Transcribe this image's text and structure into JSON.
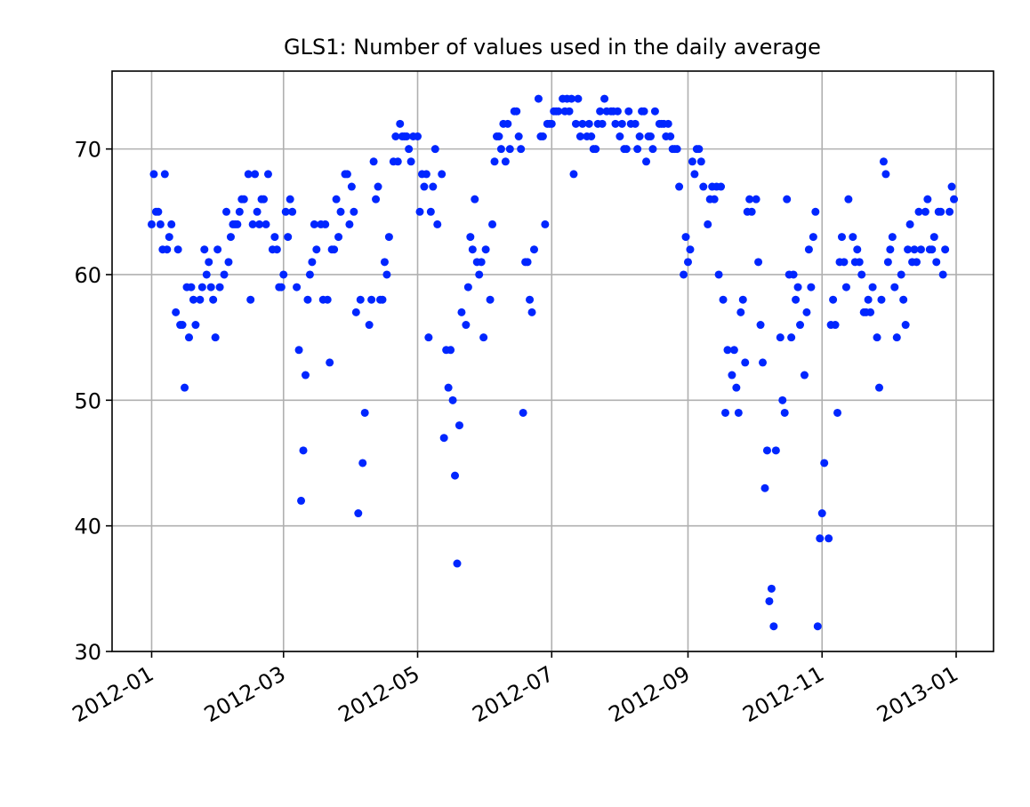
{
  "chart_data": {
    "type": "scatter",
    "title": "GLS1: Number of values used in the daily average",
    "color": "#0026ff",
    "grid": true,
    "xlim": [
      -18,
      383
    ],
    "xticks": [
      {
        "value": 0,
        "label": "2012-01"
      },
      {
        "value": 60,
        "label": "2012-03"
      },
      {
        "value": 121,
        "label": "2012-05"
      },
      {
        "value": 182,
        "label": "2012-07"
      },
      {
        "value": 244,
        "label": "2012-09"
      },
      {
        "value": 305,
        "label": "2012-11"
      },
      {
        "value": 366,
        "label": "2013-01"
      }
    ],
    "ylim": [
      30,
      76.2
    ],
    "yticks": [
      30,
      40,
      50,
      60,
      70
    ],
    "x": [
      0,
      1,
      2,
      3,
      4,
      5,
      6,
      7,
      8,
      9,
      11,
      12,
      13,
      14,
      15,
      16,
      17,
      18,
      19,
      20,
      22,
      23,
      24,
      25,
      26,
      27,
      28,
      29,
      30,
      31,
      33,
      34,
      35,
      36,
      37,
      38,
      39,
      40,
      41,
      42,
      44,
      45,
      46,
      47,
      48,
      49,
      50,
      51,
      52,
      53,
      55,
      56,
      57,
      58,
      59,
      60,
      61,
      62,
      63,
      64,
      66,
      67,
      68,
      69,
      70,
      71,
      72,
      73,
      74,
      75,
      77,
      78,
      79,
      80,
      81,
      82,
      83,
      84,
      85,
      86,
      88,
      89,
      90,
      91,
      92,
      93,
      94,
      95,
      96,
      97,
      99,
      100,
      101,
      102,
      103,
      104,
      105,
      106,
      107,
      108,
      110,
      111,
      112,
      113,
      114,
      115,
      116,
      117,
      118,
      119,
      121,
      122,
      123,
      124,
      125,
      126,
      127,
      128,
      129,
      130,
      132,
      133,
      134,
      135,
      136,
      137,
      138,
      139,
      140,
      141,
      143,
      144,
      145,
      146,
      147,
      148,
      149,
      150,
      151,
      152,
      154,
      155,
      156,
      157,
      158,
      159,
      160,
      161,
      162,
      163,
      165,
      166,
      167,
      168,
      169,
      170,
      171,
      172,
      173,
      174,
      176,
      177,
      178,
      179,
      180,
      181,
      182,
      183,
      184,
      185,
      187,
      188,
      189,
      190,
      191,
      192,
      193,
      194,
      195,
      196,
      198,
      199,
      200,
      201,
      202,
      203,
      204,
      205,
      206,
      207,
      209,
      210,
      211,
      212,
      213,
      214,
      215,
      216,
      217,
      218,
      220,
      221,
      222,
      223,
      224,
      225,
      226,
      227,
      228,
      229,
      231,
      232,
      233,
      234,
      235,
      236,
      237,
      238,
      239,
      240,
      242,
      243,
      244,
      245,
      246,
      247,
      248,
      249,
      250,
      251,
      253,
      254,
      255,
      256,
      257,
      258,
      259,
      260,
      261,
      262,
      264,
      265,
      266,
      267,
      268,
      269,
      270,
      271,
      272,
      273,
      275,
      276,
      277,
      278,
      279,
      280,
      281,
      282,
      283,
      284,
      286,
      287,
      288,
      289,
      290,
      291,
      292,
      293,
      294,
      295,
      297,
      298,
      299,
      300,
      301,
      302,
      303,
      304,
      305,
      306,
      308,
      309,
      310,
      311,
      312,
      313,
      314,
      315,
      316,
      317,
      319,
      320,
      321,
      322,
      323,
      324,
      325,
      326,
      327,
      328,
      330,
      331,
      332,
      333,
      334,
      335,
      336,
      337,
      338,
      339,
      341,
      342,
      343,
      344,
      345,
      346,
      347,
      348,
      349,
      350,
      352,
      353,
      354,
      355,
      356,
      357,
      358,
      359,
      360,
      361,
      363,
      364,
      365
    ],
    "values": [
      64,
      68,
      65,
      65,
      64,
      62,
      68,
      62,
      63,
      64,
      57,
      62,
      56,
      56,
      51,
      59,
      55,
      59,
      58,
      56,
      58,
      59,
      62,
      60,
      61,
      59,
      58,
      55,
      62,
      59,
      60,
      65,
      61,
      63,
      64,
      64,
      64,
      65,
      66,
      66,
      68,
      58,
      64,
      68,
      65,
      64,
      66,
      66,
      64,
      68,
      62,
      63,
      62,
      59,
      59,
      60,
      65,
      63,
      66,
      65,
      59,
      54,
      42,
      46,
      52,
      58,
      60,
      61,
      64,
      62,
      64,
      58,
      64,
      58,
      53,
      62,
      62,
      66,
      63,
      65,
      68,
      68,
      64,
      67,
      65,
      57,
      41,
      58,
      45,
      49,
      56,
      58,
      69,
      66,
      67,
      58,
      58,
      61,
      60,
      63,
      69,
      71,
      69,
      72,
      71,
      71,
      71,
      70,
      69,
      71,
      71,
      65,
      68,
      67,
      68,
      55,
      65,
      67,
      70,
      64,
      68,
      47,
      54,
      51,
      54,
      50,
      44,
      37,
      48,
      57,
      56,
      59,
      63,
      62,
      66,
      61,
      60,
      61,
      55,
      62,
      58,
      64,
      69,
      71,
      71,
      70,
      72,
      69,
      72,
      70,
      73,
      73,
      71,
      70,
      49,
      61,
      61,
      58,
      57,
      62,
      74,
      71,
      71,
      64,
      72,
      72,
      72,
      73,
      73,
      73,
      74,
      73,
      74,
      73,
      74,
      68,
      72,
      74,
      71,
      72,
      71,
      72,
      71,
      70,
      70,
      72,
      73,
      72,
      74,
      73,
      73,
      73,
      72,
      73,
      71,
      72,
      70,
      70,
      73,
      72,
      72,
      70,
      71,
      73,
      73,
      69,
      71,
      71,
      70,
      73,
      72,
      72,
      72,
      71,
      72,
      71,
      70,
      70,
      70,
      67,
      60,
      63,
      61,
      62,
      69,
      68,
      70,
      70,
      69,
      67,
      64,
      66,
      67,
      66,
      67,
      60,
      67,
      58,
      49,
      54,
      52,
      54,
      51,
      49,
      57,
      58,
      53,
      65,
      66,
      65,
      66,
      61,
      56,
      53,
      43,
      46,
      34,
      35,
      32,
      46,
      55,
      50,
      49,
      66,
      60,
      55,
      60,
      58,
      59,
      56,
      52,
      57,
      62,
      59,
      63,
      65,
      32,
      39,
      41,
      45,
      39,
      56,
      58,
      56,
      49,
      61,
      63,
      61,
      59,
      66,
      63,
      61,
      62,
      61,
      60,
      57,
      57,
      58,
      57,
      59,
      55,
      51,
      58,
      69,
      68,
      61,
      62,
      63,
      59,
      55,
      60,
      58,
      56,
      62,
      64,
      61,
      62,
      61,
      65,
      62,
      65,
      66,
      62,
      62,
      63,
      61,
      65,
      65,
      60,
      62,
      65,
      67,
      66
    ]
  }
}
